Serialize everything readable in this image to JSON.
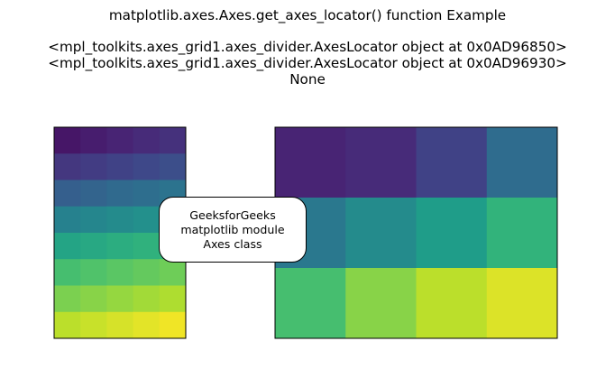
{
  "title": {
    "line1": "matplotlib.axes.Axes.get_axes_locator() function Example",
    "line2": "<mpl_toolkits.axes_grid1.axes_divider.AxesLocator object at 0x0AD96850>",
    "line3": "<mpl_toolkits.axes_grid1.axes_divider.AxesLocator object at 0x0AD96930>",
    "line4": "None"
  },
  "annotation": {
    "line1": "GeeksforGeeks",
    "line2": "matplotlib module",
    "line3": "Axes class"
  },
  "chart_data": [
    {
      "type": "heatmap",
      "colormap": "viridis",
      "interpolation": "smooth",
      "vmin": 0,
      "vmax": 1,
      "rows": 8,
      "cols": 5,
      "values": [
        [
          0.06,
          0.08,
          0.1,
          0.12,
          0.14
        ],
        [
          0.16,
          0.18,
          0.2,
          0.22,
          0.24
        ],
        [
          0.3,
          0.32,
          0.34,
          0.36,
          0.38
        ],
        [
          0.44,
          0.46,
          0.48,
          0.5,
          0.52
        ],
        [
          0.58,
          0.6,
          0.62,
          0.64,
          0.66
        ],
        [
          0.7,
          0.72,
          0.74,
          0.76,
          0.78
        ],
        [
          0.8,
          0.82,
          0.84,
          0.86,
          0.88
        ],
        [
          0.9,
          0.92,
          0.94,
          0.96,
          0.98
        ]
      ]
    },
    {
      "type": "heatmap",
      "colormap": "viridis",
      "interpolation": "nearest",
      "vmin": 0,
      "vmax": 1,
      "rows": 3,
      "cols": 4,
      "values": [
        [
          0.1,
          0.12,
          0.2,
          0.35
        ],
        [
          0.4,
          0.48,
          0.55,
          0.65
        ],
        [
          0.7,
          0.82,
          0.9,
          0.95
        ]
      ]
    }
  ]
}
